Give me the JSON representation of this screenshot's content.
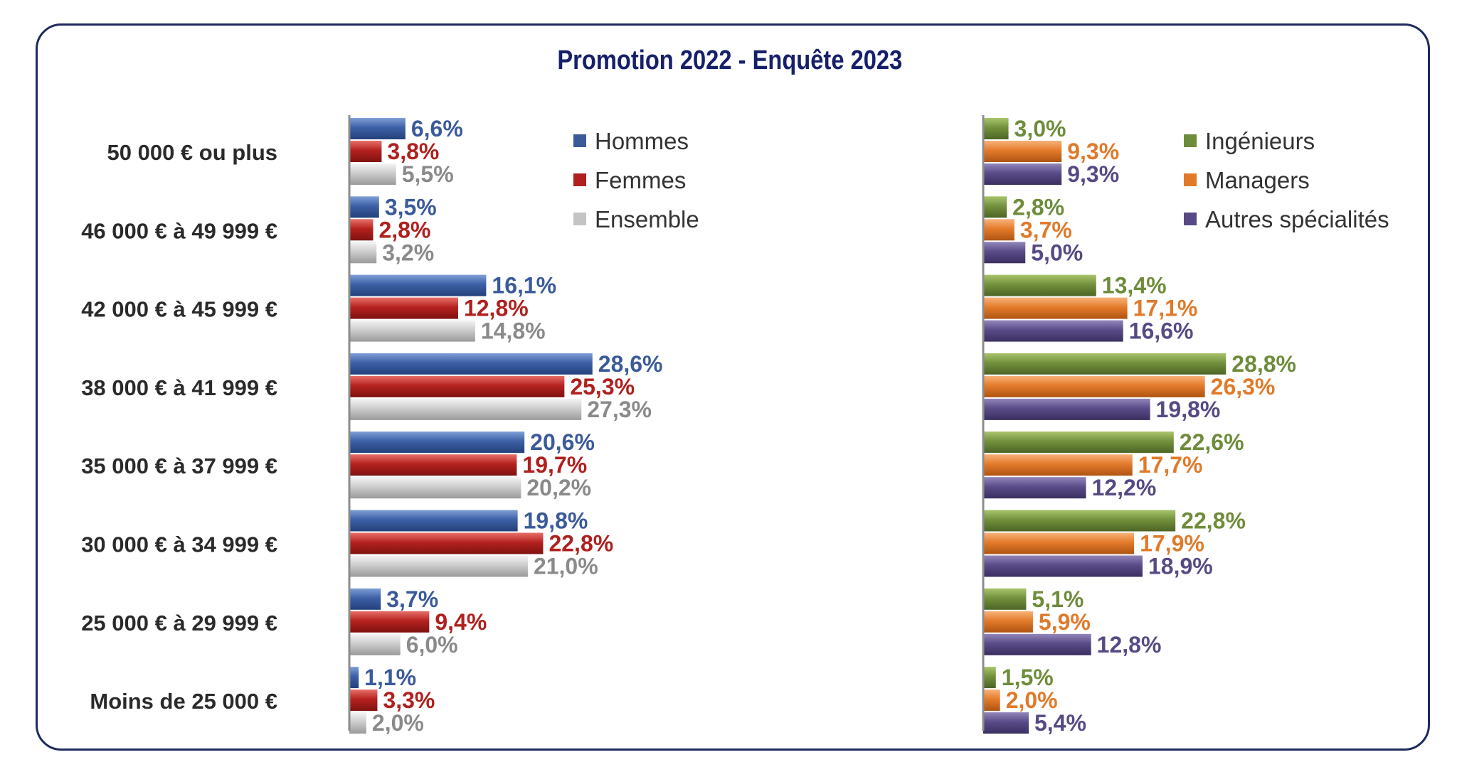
{
  "chart_data": [
    {
      "type": "bar",
      "orientation": "horizontal",
      "title": "Promotion 2022 - Enquête 2023",
      "categories": [
        "50 000 € ou plus",
        "46 000 € à 49 999 €",
        "42 000 € à 45 999 €",
        "38 000 € à 41 999 €",
        "35 000 € à 37 999 €",
        "30 000 € à 34 999 €",
        "25 000 € à 29 999 €",
        "Moins de 25 000 €"
      ],
      "series": [
        {
          "name": "Hommes",
          "color": "#3a5a9a",
          "values": [
            6.6,
            3.5,
            16.1,
            28.6,
            20.6,
            19.8,
            3.7,
            1.1
          ],
          "labels": [
            "6,6%",
            "3,5%",
            "16,1%",
            "28,6%",
            "20,6%",
            "19,8%",
            "3,7%",
            "1,1%"
          ]
        },
        {
          "name": "Femmes",
          "color": "#b0201e",
          "values": [
            3.8,
            2.8,
            12.8,
            25.3,
            19.7,
            22.8,
            9.4,
            3.3
          ],
          "labels": [
            "3,8%",
            "2,8%",
            "12,8%",
            "25,3%",
            "19,7%",
            "22,8%",
            "9,4%",
            "3,3%"
          ]
        },
        {
          "name": "Ensemble",
          "color": "#c4c4c4",
          "values": [
            5.5,
            3.2,
            14.8,
            27.3,
            20.2,
            21.0,
            6.0,
            2.0
          ],
          "labels": [
            "5,5%",
            "3,2%",
            "14,8%",
            "27,3%",
            "20,2%",
            "21,0%",
            "6,0%",
            "2,0%"
          ]
        }
      ],
      "legend_position": "top-right",
      "grid": false
    },
    {
      "type": "bar",
      "orientation": "horizontal",
      "categories": [
        "50 000 € ou plus",
        "46 000 € à 49 999 €",
        "42 000 € à 45 999 €",
        "38 000 € à 41 999 €",
        "35 000 € à 37 999 €",
        "30 000 € à 34 999 €",
        "25 000 € à 29 999 €",
        "Moins de 25 000 €"
      ],
      "series": [
        {
          "name": "Ingénieurs",
          "color": "#6e8c3a",
          "values": [
            3.0,
            2.8,
            13.4,
            28.8,
            22.6,
            22.8,
            5.1,
            1.5
          ],
          "labels": [
            "3,0%",
            "2,8%",
            "13,4%",
            "28,8%",
            "22,6%",
            "22,8%",
            "5,1%",
            "1,5%"
          ]
        },
        {
          "name": "Managers",
          "color": "#e07a2a",
          "values": [
            9.3,
            3.7,
            17.1,
            26.3,
            17.7,
            17.9,
            5.9,
            2.0
          ],
          "labels": [
            "9,3%",
            "3,7%",
            "17,1%",
            "26,3%",
            "17,7%",
            "17,9%",
            "5,9%",
            "2,0%"
          ]
        },
        {
          "name": "Autres spécialités",
          "color": "#574a84",
          "values": [
            9.3,
            5.0,
            16.6,
            19.8,
            12.2,
            18.9,
            12.8,
            5.4
          ],
          "labels": [
            "9,3%",
            "5,0%",
            "16,6%",
            "19,8%",
            "12,2%",
            "18,9%",
            "12,8%",
            "5,4%"
          ]
        }
      ],
      "legend_position": "top-right",
      "grid": false
    }
  ]
}
